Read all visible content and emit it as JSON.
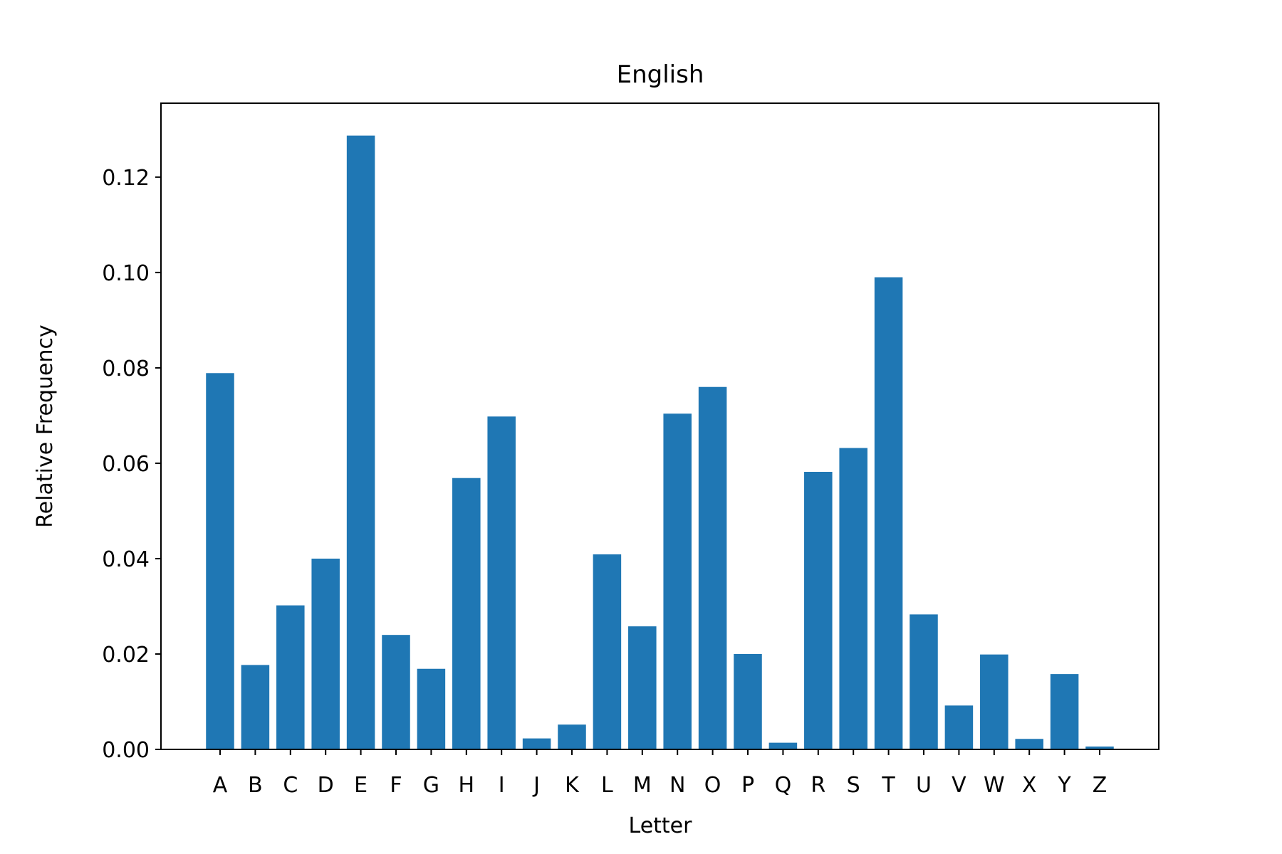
{
  "chart_data": {
    "type": "bar",
    "title": "English",
    "xlabel": "Letter",
    "ylabel": "Relative Frequency",
    "categories": [
      "A",
      "B",
      "C",
      "D",
      "E",
      "F",
      "G",
      "H",
      "I",
      "J",
      "K",
      "L",
      "M",
      "N",
      "O",
      "P",
      "Q",
      "R",
      "S",
      "T",
      "U",
      "V",
      "W",
      "X",
      "Y",
      "Z"
    ],
    "values": [
      0.0789,
      0.0177,
      0.0302,
      0.04,
      0.1287,
      0.024,
      0.0169,
      0.0569,
      0.0698,
      0.0023,
      0.0052,
      0.0409,
      0.0258,
      0.0704,
      0.076,
      0.02,
      0.0014,
      0.0582,
      0.0632,
      0.099,
      0.0283,
      0.0092,
      0.0199,
      0.0022,
      0.0158,
      0.0006
    ],
    "ylim": [
      0,
      0.1355
    ],
    "yticks": [
      "0.00",
      "0.02",
      "0.04",
      "0.06",
      "0.08",
      "0.10",
      "0.12"
    ],
    "bar_color": "#1f77b4",
    "grid": false,
    "legend": false
  }
}
